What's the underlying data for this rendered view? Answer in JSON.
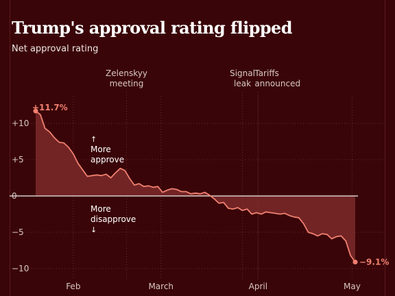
{
  "title": "Trump's approval rating flipped",
  "subtitle": "Net approval rating",
  "colors": {
    "background": "#3a0508",
    "line": "#f08070",
    "fill": "#7c2a2a",
    "text": "#d8c8c4",
    "grid": "#6a2c30",
    "zero_line": "#d8cccc"
  },
  "chart_data": {
    "type": "area",
    "title": "Trump's approval rating flipped",
    "ylabel": "Net approval rating",
    "ylim": [
      -11,
      13
    ],
    "yticks": [
      10,
      5,
      0,
      -5,
      -10
    ],
    "ytick_labels": [
      "+10",
      "+5",
      "0",
      "−5",
      "−10"
    ],
    "x_months": [
      "Feb",
      "March",
      "April",
      "May"
    ],
    "x_month_days": [
      12,
      40,
      71,
      101
    ],
    "x_domain_days": [
      0,
      102
    ],
    "series": [
      {
        "x_days": [
          0,
          1.5,
          3,
          4.5,
          6,
          7.5,
          9,
          10.5,
          12,
          13.5,
          15,
          16.5,
          18,
          19.5,
          21,
          22.5,
          24,
          25.5,
          27,
          28.5,
          30,
          31.5,
          33,
          34.5,
          36,
          37.5,
          39,
          40.5,
          42,
          43.5,
          45,
          46.5,
          48,
          49.5,
          51,
          52.5,
          54,
          55.5,
          57,
          58.5,
          60,
          61.5,
          63,
          64.5,
          66,
          67.5,
          69,
          70.5,
          72,
          73.5,
          75,
          76.5,
          78,
          79.5,
          81,
          82.5,
          84,
          85.5,
          87,
          88.5,
          90,
          91.5,
          93,
          94.5,
          96,
          97.5,
          99,
          100.5,
          102
        ],
        "values": [
          11.7,
          11.2,
          9.3,
          8.8,
          8.0,
          7.4,
          7.3,
          6.7,
          5.8,
          4.5,
          3.6,
          2.7,
          2.8,
          2.9,
          2.8,
          3.0,
          2.5,
          3.2,
          3.8,
          3.5,
          2.4,
          1.5,
          1.7,
          1.3,
          1.4,
          1.2,
          1.3,
          0.5,
          0.8,
          1.0,
          0.9,
          0.6,
          0.6,
          0.3,
          0.4,
          0.3,
          0.5,
          0.1,
          -0.4,
          -1.0,
          -0.9,
          -1.7,
          -1.8,
          -1.6,
          -2.0,
          -1.8,
          -2.5,
          -2.3,
          -2.5,
          -2.2,
          -2.3,
          -2.4,
          -2.5,
          -2.4,
          -2.7,
          -2.9,
          -3.0,
          -3.8,
          -5.0,
          -5.2,
          -5.5,
          -5.2,
          -5.3,
          -5.9,
          -5.6,
          -5.5,
          -6.2,
          -8.2,
          -9.1
        ]
      }
    ],
    "annotations": {
      "start_label": "+11.7%",
      "end_label": "−9.1%",
      "approve_label": [
        "More",
        "approve"
      ],
      "disapprove_label": [
        "More",
        "disapprove"
      ],
      "events": [
        {
          "day": 29,
          "lines": [
            "Zelenskyy",
            "meeting"
          ]
        },
        {
          "day": 66,
          "lines": [
            "Signal",
            "leak"
          ]
        },
        {
          "day": 71,
          "lines": [
            "Tariffs",
            "announced"
          ]
        }
      ]
    }
  }
}
